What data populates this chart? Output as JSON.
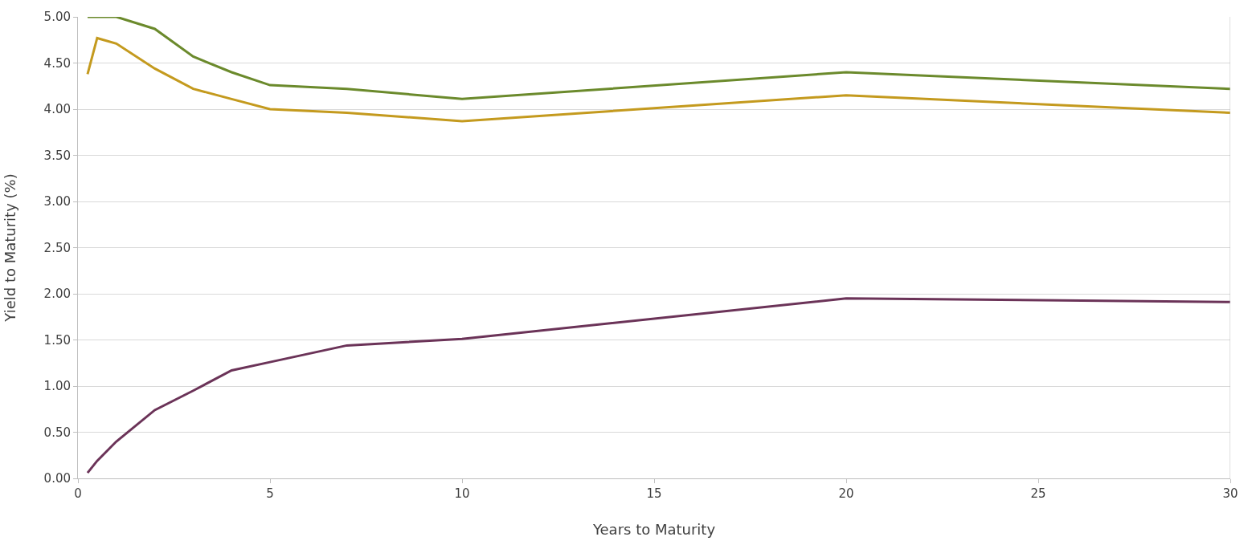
{
  "chart_data": {
    "type": "line",
    "xlabel": "Years to Maturity",
    "ylabel": "Yield to Maturity (%)",
    "xlim": [
      0,
      30
    ],
    "xticks": [
      0,
      5,
      10,
      15,
      20,
      25,
      30
    ],
    "ylim": [
      0,
      5
    ],
    "yticks": [
      {
        "value": 0,
        "label": "0.00"
      },
      {
        "value": 0.5,
        "label": "0.50"
      },
      {
        "value": 1,
        "label": "1.00"
      },
      {
        "value": 1.5,
        "label": "1.50"
      },
      {
        "value": 2,
        "label": "2.00"
      },
      {
        "value": 2.5,
        "label": "2.50"
      },
      {
        "value": 3,
        "label": "3.00"
      },
      {
        "value": 3.5,
        "label": "3.50"
      },
      {
        "value": 4,
        "label": "4.00"
      },
      {
        "value": 4.5,
        "label": "4.50"
      },
      {
        "value": 5,
        "label": "5.00"
      }
    ],
    "grid": "y",
    "marker": "none",
    "line_style": "solid",
    "x": [
      0.25,
      0.5,
      1,
      2,
      3,
      4,
      5,
      7,
      10,
      20,
      30
    ],
    "series": [
      {
        "color": "#6b8a2c",
        "values": [
          5.0,
          5.0,
          5.0,
          4.87,
          4.57,
          4.4,
          4.26,
          4.22,
          4.11,
          4.4,
          4.22
        ]
      },
      {
        "color": "#c49a1e",
        "values": [
          4.38,
          4.77,
          4.71,
          4.44,
          4.22,
          4.11,
          4.0,
          3.96,
          3.87,
          4.15,
          3.96
        ]
      },
      {
        "color": "#6b3358",
        "values": [
          0.06,
          0.19,
          0.4,
          0.74,
          0.95,
          1.17,
          1.26,
          1.44,
          1.51,
          1.95,
          1.91
        ]
      }
    ]
  }
}
